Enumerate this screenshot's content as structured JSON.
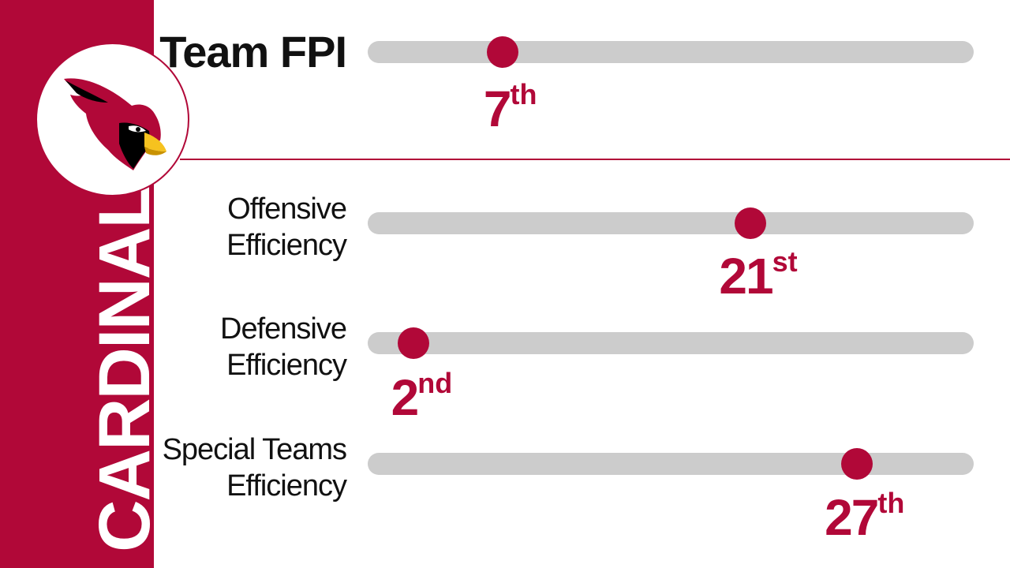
{
  "team": {
    "name": "CARDINALS",
    "logo_icon": "cardinals-bird-logo-icon",
    "primary_color": "#b10838",
    "accent_color": "#f6c21f"
  },
  "chart_data": {
    "type": "rank-slider",
    "scale": {
      "min": 1,
      "max": 32
    },
    "rows": [
      {
        "label": "Team FPI",
        "rank": 7,
        "rank_number": "7",
        "rank_suffix": "th"
      },
      {
        "label": "Offensive\nEfficiency",
        "rank": 21,
        "rank_number": "21",
        "rank_suffix": "st"
      },
      {
        "label": "Defensive\nEfficiency",
        "rank": 2,
        "rank_number": "2",
        "rank_suffix": "nd"
      },
      {
        "label": "Special Teams\nEfficiency",
        "rank": 27,
        "rank_number": "27",
        "rank_suffix": "th"
      }
    ]
  }
}
